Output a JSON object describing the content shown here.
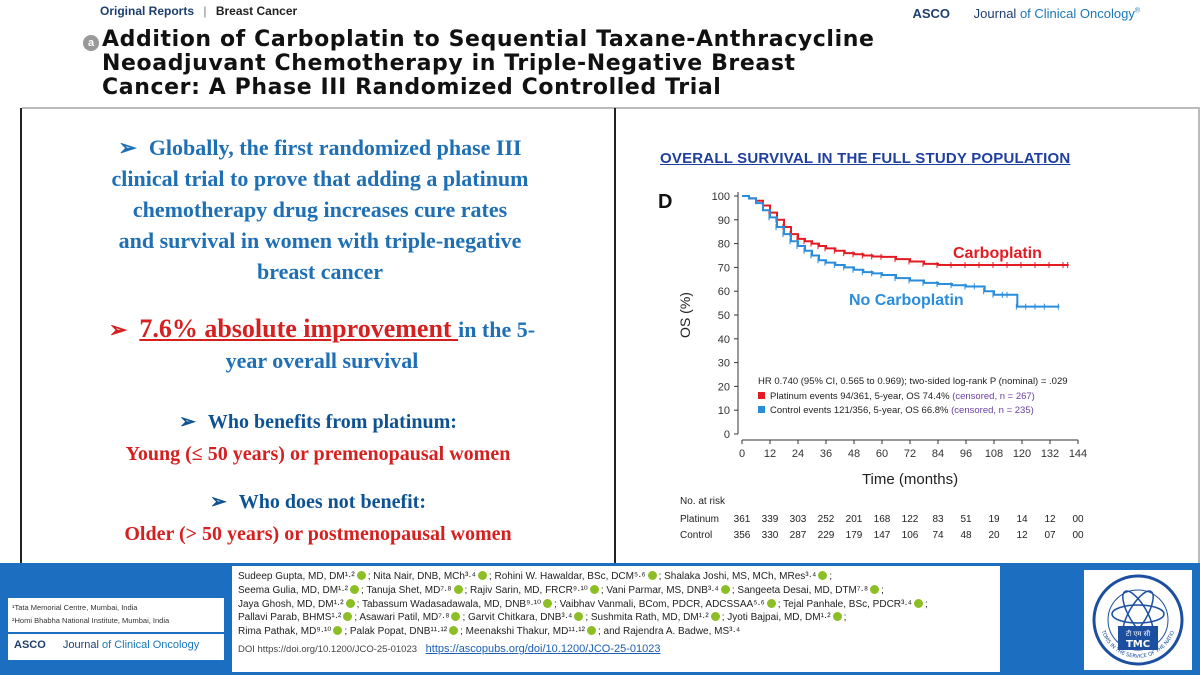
{
  "header": {
    "section": "Original Reports",
    "topic": "Breast Cancer",
    "publisher": "ASCO",
    "journal_prefix": "Journal",
    "journal_suffix": "of Clinical Oncology",
    "journal_mark": "®",
    "open_access_mark": "a",
    "title_line1": "Addition of Carboplatin to Sequential Taxane-Anthracycline",
    "title_line2": "Neoadjuvant Chemotherapy in Triple-Negative Breast",
    "title_line3": "Cancer: A Phase III Randomized Controlled Trial"
  },
  "left": {
    "p1_arrow": "➢",
    "p1_lines": [
      "Globally, the first randomized phase III",
      "clinical trial to prove that adding a platinum",
      "chemotherapy drug increases cure rates",
      "and survival in women with triple-negative",
      "breast cancer"
    ],
    "p2_arrow": "➢",
    "p2_highlight": "7.6% absolute improvement ",
    "p2_rest": "in the 5-",
    "p2_line2": "year overall survival",
    "p3_arrow": "➢",
    "p3_heading": "Who benefits from platinum:",
    "p3_text": "Young (≤ 50 years) or premenopausal women",
    "p4_arrow": "➢",
    "p4_heading": "Who does not benefit:",
    "p4_text": "Older (> 50 years) or postmenopausal women"
  },
  "chart_title": "OVERALL SURVIVAL IN THE FULL STUDY POPULATION",
  "chart_data": {
    "type": "line",
    "panel_label": "D",
    "title": "OVERALL SURVIVAL IN THE FULL STUDY POPULATION",
    "xlabel": "Time (months)",
    "ylabel": "OS (%)",
    "xlim": [
      0,
      144
    ],
    "ylim": [
      0,
      100
    ],
    "xticks": [
      0,
      12,
      24,
      36,
      48,
      60,
      72,
      84,
      96,
      108,
      120,
      132,
      144
    ],
    "yticks": [
      0,
      10,
      20,
      30,
      40,
      50,
      60,
      70,
      80,
      90,
      100
    ],
    "series": [
      {
        "name": "Carboplatin",
        "color": "#e31b23",
        "x": [
          0,
          3,
          6,
          9,
          12,
          15,
          18,
          21,
          24,
          27,
          30,
          33,
          36,
          40,
          44,
          48,
          52,
          56,
          60,
          66,
          72,
          78,
          84,
          90,
          96,
          102,
          108,
          114,
          120,
          126,
          132,
          138,
          140
        ],
        "y": [
          100,
          99,
          98,
          96,
          93,
          90,
          87,
          84,
          82,
          81,
          80,
          79,
          78,
          77,
          76,
          75.5,
          75,
          74.6,
          74.4,
          73.5,
          72.5,
          71.5,
          71,
          71,
          71,
          71,
          71,
          71,
          71,
          71,
          71,
          71,
          71
        ]
      },
      {
        "name": "No Carboplatin",
        "color": "#2a8ddb",
        "x": [
          0,
          3,
          6,
          9,
          12,
          15,
          18,
          21,
          24,
          27,
          30,
          33,
          36,
          40,
          44,
          48,
          52,
          56,
          60,
          66,
          72,
          78,
          84,
          90,
          96,
          100,
          104,
          108,
          112,
          114,
          118,
          122,
          126,
          130,
          136
        ],
        "y": [
          100,
          99,
          97,
          94,
          91,
          87,
          84,
          81,
          79,
          77,
          75,
          73,
          72,
          71,
          70,
          69,
          68,
          67.5,
          66.8,
          65.5,
          64.5,
          63.5,
          63,
          62.5,
          62,
          62,
          60,
          58.5,
          58.5,
          58.5,
          53.5,
          53.5,
          53.5,
          53.5,
          53.5
        ]
      }
    ],
    "annotations": {
      "carboplatin_label": "Carboplatin",
      "no_carboplatin_label": "No Carboplatin",
      "hr_text": "HR 0.740 (95% CI, 0.565 to 0.969); two-sided log-rank P (nominal) = .029",
      "legend_platinum_main": "Platinum events 94/361, 5-year, OS 74.4% ",
      "legend_platinum_censored": "(censored, n = 267)",
      "legend_control_main": "Control events 121/356, 5-year, OS 66.8% ",
      "legend_control_censored": "(censored, n = 235)"
    },
    "risk_table": {
      "heading": "No. at risk",
      "rows": [
        {
          "label": "Platinum",
          "values": [
            "361",
            "339",
            "303",
            "252",
            "201",
            "168",
            "122",
            "83",
            "51",
            "19",
            "14",
            "12",
            "00"
          ]
        },
        {
          "label": "Control",
          "values": [
            "356",
            "330",
            "287",
            "229",
            "179",
            "147",
            "106",
            "74",
            "48",
            "20",
            "12",
            "07",
            "00"
          ]
        }
      ]
    }
  },
  "footer": {
    "aff1": "¹Tata Memorial Centre, Mumbai, India",
    "aff2": "²Homi Bhabha National Institute, Mumbai, India",
    "logo_publisher": "ASCO",
    "logo_journal_prefix": "Journal",
    "logo_journal_suffix": "of Clinical Oncology",
    "authors": [
      "Sudeep Gupta, MD, DM¹·²; Nita Nair, DNB, MCh³·⁴; Rohini W. Hawaldar, BSc, DCM⁵·⁶; Shalaka Joshi, MS, MCh, MRes³·⁴;",
      "Seema Gulia, MD, DM¹·²; Tanuja Shet, MD⁷·⁸; Rajiv Sarin, MD, FRCR⁹·¹⁰; Vani Parmar, MS, DNB³·⁴; Sangeeta Desai, MD, DTM⁷·⁸;",
      "Jaya Ghosh, MD, DM¹·²; Tabassum Wadasadawala, MD, DNB⁹·¹⁰; Vaibhav Vanmali, BCom, PDCR, ADCSSAA⁵·⁶; Tejal Panhale, BSc, PDCR³·⁴;",
      "Pallavi Parab, BHMS¹·²; Asawari Patil, MD⁷·⁸; Garvit Chitkara, DNB³·⁴; Sushmita Rath, MD, DM¹·²; Jyoti Bajpai, MD, DM¹·²;",
      "Rima Pathak, MD⁹·¹⁰; Palak Popat, DNB¹¹·¹²; Meenakshi Thakur, MD¹¹·¹²; and Rajendra A. Badwe, MS³·⁴"
    ],
    "doi_label": "DOI https://doi.org/10.1200/JCO-25-01023",
    "doi_link": "https://ascopubs.org/doi/10.1200/JCO-25-01023",
    "tmc_logo_text": "TMC",
    "tmc_logo_hindi": "टी एम सी",
    "tmc_logo_motto": "ATOMS IN THE SERVICE OF THE NATION"
  },
  "colors": {
    "accent_blue": "#1f6fb5",
    "accent_red": "#d61f1f",
    "footer_blue": "#1c6fc0"
  }
}
